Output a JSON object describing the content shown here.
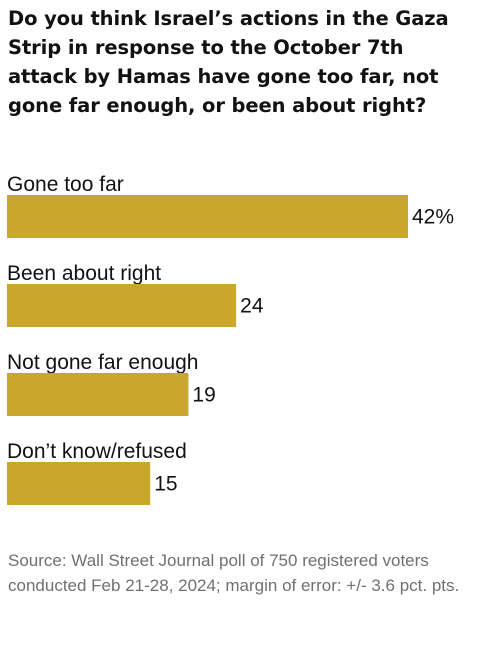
{
  "title": "Do you think Israel’s actions in the Gaza Strip in response to the October 7th attack by Hamas have gone too far, not gone far enough, or been about right?",
  "source": "Source: Wall Street Journal poll of 750 registered voters conducted Feb 21-28, 2024; margin of error: +/- 3.6 pct. pts.",
  "colors": {
    "bar": "#c9a72e",
    "text": "#121212",
    "source_text": "#707070"
  },
  "chart_data": {
    "type": "bar",
    "orientation": "horizontal",
    "categories": [
      "Gone too far",
      "Been about right",
      "Not gone far enough",
      "Don’t know/refused"
    ],
    "values": [
      42,
      24,
      19,
      15
    ],
    "value_labels": [
      "42%",
      "24",
      "19",
      "15"
    ],
    "unit": "%",
    "xlim": [
      0,
      42
    ],
    "grid": false,
    "legend": "none"
  }
}
